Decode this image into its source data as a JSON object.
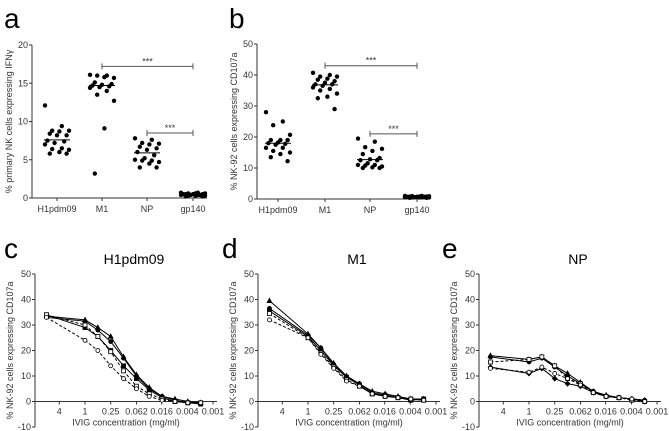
{
  "chart_data": [
    {
      "panel": "a",
      "type": "scatter",
      "ylabel": "% primary NK cells expressing IFNγ",
      "ylim": [
        0,
        20
      ],
      "yticks": [
        0,
        5,
        10,
        15,
        20
      ],
      "categories": [
        "H1pdm09",
        "M1",
        "NP",
        "gp140"
      ],
      "values": [
        [
          12.1,
          9.4,
          8.8,
          8.8,
          8.7,
          8.4,
          8.2,
          8.2,
          7.5,
          7.4,
          7.2,
          7.0,
          6.5,
          6.4,
          6.3,
          6.0,
          5.8,
          5.8
        ],
        [
          16.1,
          16.0,
          16.0,
          15.7,
          15.8,
          15.1,
          14.9,
          14.8,
          14.7,
          14.6,
          14.5,
          14.4,
          14.0,
          13.5,
          12.7,
          9.1,
          3.2
        ],
        [
          7.8,
          7.6,
          7.2,
          7.1,
          7.0,
          6.7,
          6.5,
          6.3,
          6.0,
          5.6,
          5.2,
          5.0,
          4.9,
          4.9,
          4.7,
          4.5,
          4.0,
          4.0
        ],
        [
          0.7,
          0.7,
          0.6,
          0.6,
          0.6,
          0.5,
          0.5,
          0.5,
          0.5,
          0.4,
          0.4,
          0.4,
          0.4,
          0.3,
          0.3,
          0.3,
          0.2,
          0.2
        ]
      ],
      "medians": [
        7.6,
        14.7,
        5.9,
        0.5
      ],
      "significance": [
        {
          "from": "M1",
          "to": "gp140",
          "y": 17.2,
          "label": "***"
        },
        {
          "from": "NP",
          "to": "gp140",
          "y": 8.5,
          "label": "***"
        }
      ]
    },
    {
      "panel": "b",
      "type": "scatter",
      "ylabel": "% NK-92 cells expressing CD107a",
      "ylim": [
        0,
        50
      ],
      "yticks": [
        0,
        10,
        20,
        30,
        40,
        50
      ],
      "categories": [
        "H1pdm09",
        "M1",
        "NP",
        "gp140"
      ],
      "values": [
        [
          28,
          25,
          23.8,
          20.7,
          19,
          19,
          19,
          18.2,
          18,
          17.8,
          17.5,
          16.5,
          16.5,
          15.5,
          15,
          14.5,
          13.5,
          12.2
        ],
        [
          40.7,
          40,
          39.5,
          39.5,
          38.8,
          38.5,
          38,
          37.5,
          37,
          37,
          36.5,
          36,
          35.5,
          35,
          34,
          33,
          32.5,
          29
        ],
        [
          19.5,
          18.5,
          16.7,
          16.2,
          15.5,
          14.5,
          13.2,
          12.8,
          12.5,
          12.5,
          11.5,
          11,
          11,
          10.8,
          10.5,
          10.2,
          10,
          10
        ],
        [
          1.0,
          1.0,
          0.9,
          0.9,
          0.8,
          0.8,
          0.8,
          0.7,
          0.7,
          0.7,
          0.6,
          0.6,
          0.6,
          0.5,
          0.5,
          0.5,
          0.4,
          0.4
        ]
      ],
      "medians": [
        18,
        36.8,
        12.7,
        0.7
      ],
      "significance": [
        {
          "from": "M1",
          "to": "gp140",
          "y": 43,
          "label": "***"
        },
        {
          "from": "NP",
          "to": "gp140",
          "y": 21,
          "label": "***"
        }
      ]
    },
    {
      "panel": "c",
      "type": "line",
      "title": "H1pdm09",
      "xlabel": "IVIG concentration (mg/ml)",
      "ylabel": "% NK-92 cells expressing CD107a",
      "x_scale": "log",
      "x_reversed": true,
      "xticks": [
        "4",
        "1",
        "0.25",
        "0.062",
        "0.016",
        "0.004",
        "0.001"
      ],
      "ylim": [
        -10,
        50
      ],
      "yticks": [
        -10,
        0,
        10,
        20,
        30,
        40,
        50
      ],
      "x": [
        8,
        1,
        0.5,
        0.25,
        0.125,
        0.0625,
        0.03125,
        0.015625,
        0.0078,
        0.0039,
        0.00195
      ],
      "series": [
        {
          "marker": "filled-triangle",
          "dashed": false,
          "values": [
            33.5,
            32,
            29,
            25.5,
            17.5,
            10.5,
            5.5,
            2,
            1,
            0,
            -0.5
          ]
        },
        {
          "marker": "filled-circle",
          "dashed": false,
          "values": [
            33,
            31.5,
            28,
            23.5,
            17,
            10,
            5,
            2,
            0.5,
            -0.5,
            -0.5
          ]
        },
        {
          "marker": "filled-square",
          "dashed": false,
          "values": [
            34,
            29,
            25.5,
            20,
            14,
            9,
            4.5,
            1.5,
            0,
            -0.5,
            -1
          ]
        },
        {
          "marker": "open-square",
          "dashed": true,
          "values": [
            34,
            30,
            25.5,
            19.5,
            12,
            6,
            3,
            1,
            0,
            -0.5,
            -0.5
          ]
        },
        {
          "marker": "open-circle",
          "dashed": true,
          "values": [
            33,
            24,
            20,
            14,
            9,
            5,
            2,
            0.5,
            0,
            -0.5,
            -0.5
          ]
        }
      ]
    },
    {
      "panel": "d",
      "type": "line",
      "title": "M1",
      "xlabel": "IVIG concentration (mg/ml)",
      "ylabel": "% NK-92 cells expressing CD107a",
      "x_scale": "log",
      "x_reversed": true,
      "xticks": [
        "4",
        "1",
        "0.25",
        "0.062",
        "0.016",
        "0.004",
        "0.001"
      ],
      "ylim": [
        -10,
        50
      ],
      "yticks": [
        -10,
        0,
        10,
        20,
        30,
        40,
        50
      ],
      "x": [
        8,
        1,
        0.5,
        0.25,
        0.125,
        0.0625,
        0.03125,
        0.015625,
        0.0078,
        0.0039,
        0.00195
      ],
      "series": [
        {
          "marker": "filled-triangle",
          "dashed": false,
          "values": [
            39.5,
            26.5,
            21,
            15,
            10,
            7,
            4,
            3,
            2,
            1,
            1
          ]
        },
        {
          "marker": "filled-circle",
          "dashed": false,
          "values": [
            36.5,
            26,
            21,
            14.5,
            9.5,
            7,
            3.5,
            2.5,
            1.5,
            1,
            0.5
          ]
        },
        {
          "marker": "filled-square",
          "dashed": false,
          "values": [
            35.5,
            25.5,
            20,
            14,
            9.5,
            6.5,
            3,
            2.5,
            1.5,
            0.5,
            1
          ]
        },
        {
          "marker": "open-square",
          "dashed": true,
          "values": [
            34.5,
            25,
            19,
            13.5,
            8.5,
            6,
            3,
            2,
            1.5,
            1,
            0.5
          ]
        },
        {
          "marker": "open-circle",
          "dashed": true,
          "values": [
            32,
            25,
            18.5,
            13,
            8,
            6,
            3,
            2,
            1.5,
            1,
            0.5
          ]
        }
      ]
    },
    {
      "panel": "e",
      "type": "line",
      "title": "NP",
      "xlabel": "IVIG concentration (mg/ml)",
      "ylabel": "% NK-92 cells expressing CD107a",
      "x_scale": "log",
      "x_reversed": true,
      "xticks": [
        "4",
        "1",
        "0.25",
        "0.062",
        "0.016",
        "0.004",
        "0.001"
      ],
      "ylim": [
        -10,
        50
      ],
      "yticks": [
        -10,
        0,
        10,
        20,
        30,
        40,
        50
      ],
      "x": [
        8,
        1,
        0.5,
        0.25,
        0.125,
        0.0625,
        0.03125,
        0.015625,
        0.0078,
        0.0039,
        0.00195
      ],
      "series": [
        {
          "marker": "filled-triangle",
          "dashed": false,
          "values": [
            18,
            16.5,
            17.5,
            14,
            11,
            7.5,
            4,
            2.5,
            1.5,
            1,
            0.5
          ]
        },
        {
          "marker": "filled-circle",
          "dashed": false,
          "values": [
            17.5,
            15.5,
            17,
            13.5,
            10,
            7,
            4,
            2,
            1.5,
            1,
            0.5
          ]
        },
        {
          "marker": "open-square",
          "dashed": true,
          "values": [
            15.5,
            16.5,
            17.5,
            14,
            9,
            7,
            3.5,
            2,
            1.5,
            0.5,
            0
          ]
        },
        {
          "marker": "filled-diamond",
          "dashed": false,
          "values": [
            13.5,
            11,
            13,
            9,
            7,
            6,
            3.5,
            2,
            1.5,
            1,
            0
          ]
        },
        {
          "marker": "open-circle",
          "dashed": true,
          "values": [
            13,
            11.5,
            13.5,
            11,
            9,
            6.5,
            3.5,
            2,
            1.5,
            1,
            0
          ]
        }
      ]
    }
  ]
}
